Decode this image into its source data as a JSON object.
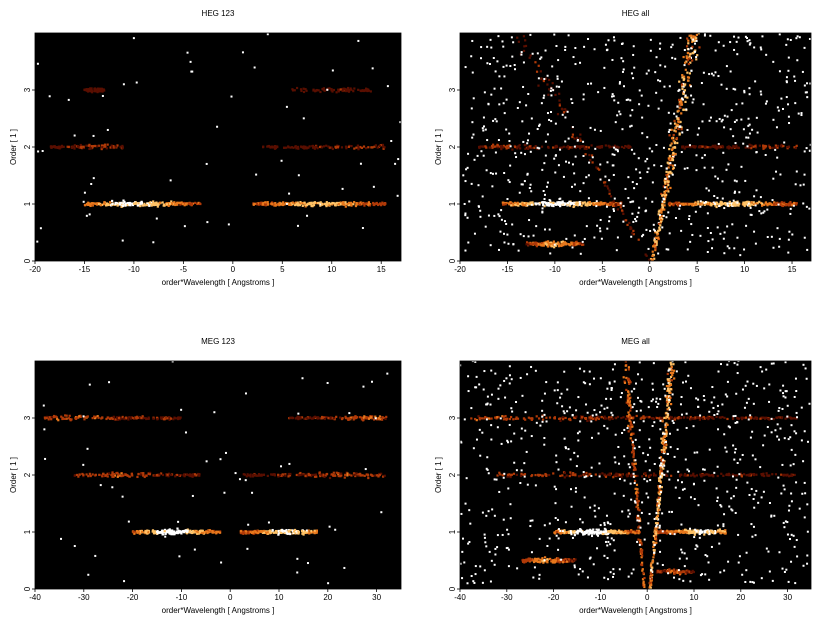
{
  "chart_data": [
    {
      "type": "heatmap",
      "title": "HEG 123",
      "xlabel": "order*Wavelength [ Angstroms ]",
      "ylabel": "Order [ 1 ]",
      "xlim": [
        -20,
        17
      ],
      "ylim": [
        0,
        4
      ],
      "xticks": [
        -20,
        -15,
        -10,
        -5,
        0,
        5,
        10,
        15
      ],
      "yticks": [
        0,
        1,
        2,
        3
      ],
      "background": "#000000",
      "colormap": [
        "#5a0f00",
        "#b03a08",
        "#e8781c",
        "#ffc266",
        "#ffffff"
      ],
      "bands": [
        {
          "order": 1,
          "x_min": -15,
          "x_max": -3.2,
          "peak_x": -10,
          "intensity": 0.85
        },
        {
          "order": 1,
          "x_min": 2,
          "x_max": 15.5,
          "peak_x": 8.5,
          "intensity": 0.7
        },
        {
          "order": 2,
          "x_min": -18.5,
          "x_max": -11,
          "peak_x": -14,
          "intensity": 0.25
        },
        {
          "order": 2,
          "x_min": 3,
          "x_max": 15.5,
          "peak_x": 13,
          "intensity": 0.2
        },
        {
          "order": 3,
          "x_min": -15,
          "x_max": -13,
          "peak_x": -14,
          "intensity": 0.1
        },
        {
          "order": 3,
          "x_min": 6,
          "x_max": 14,
          "peak_x": 10,
          "intensity": 0.1
        }
      ]
    },
    {
      "type": "heatmap",
      "title": "HEG all",
      "xlabel": "order*Wavelength [ Angstroms ]",
      "ylabel": "Order [ 1 ]",
      "xlim": [
        -20,
        17
      ],
      "ylim": [
        0,
        4
      ],
      "xticks": [
        -20,
        -15,
        -10,
        -5,
        0,
        5,
        10,
        15
      ],
      "yticks": [
        0,
        1,
        2,
        3
      ],
      "background": "#000000",
      "colormap": [
        "#5a0f00",
        "#b03a08",
        "#e8781c",
        "#ffc266",
        "#ffffff"
      ],
      "bands": [
        {
          "order": 1,
          "x_min": -15.5,
          "x_max": -3,
          "peak_x": -10,
          "intensity": 0.9
        },
        {
          "order": 1,
          "x_min": 2,
          "x_max": 15.5,
          "peak_x": 8.5,
          "intensity": 0.75
        },
        {
          "order": 0.3,
          "x_min": -13,
          "x_max": -7,
          "peak_x": -10,
          "intensity": 0.6
        },
        {
          "order": 2,
          "x_min": -18,
          "x_max": -2,
          "peak_x": -14,
          "intensity": 0.2
        },
        {
          "order": 2,
          "x_min": 3,
          "x_max": 15.5,
          "peak_x": 13,
          "intensity": 0.2
        }
      ],
      "streaks": [
        {
          "x_at_order0": 0.3,
          "slope_x_per_order": 1.1,
          "intensity": 0.85
        },
        {
          "x_at_order0": 0,
          "slope_x_per_order": -3.5,
          "intensity": 0.25
        }
      ]
    },
    {
      "type": "heatmap",
      "title": "MEG 123",
      "xlabel": "order*Wavelength [ Angstroms ]",
      "ylabel": "Order [ 1 ]",
      "xlim": [
        -40,
        35
      ],
      "ylim": [
        0,
        4
      ],
      "xticks": [
        -40,
        -30,
        -20,
        -10,
        0,
        10,
        20,
        30
      ],
      "yticks": [
        0,
        1,
        2,
        3
      ],
      "background": "#000000",
      "colormap": [
        "#5a0f00",
        "#b03a08",
        "#e8781c",
        "#ffc266",
        "#ffffff"
      ],
      "bands": [
        {
          "order": 1,
          "x_min": -20,
          "x_max": -2,
          "peak_x": -12,
          "intensity": 0.95
        },
        {
          "order": 1,
          "x_min": 2,
          "x_max": 18,
          "peak_x": 12,
          "intensity": 0.85
        },
        {
          "order": 2,
          "x_min": -32,
          "x_max": -6,
          "peak_x": -24,
          "intensity": 0.3
        },
        {
          "order": 2,
          "x_min": 2,
          "x_max": 32,
          "peak_x": 24,
          "intensity": 0.3
        },
        {
          "order": 3,
          "x_min": -38,
          "x_max": -10,
          "peak_x": -32,
          "intensity": 0.35
        },
        {
          "order": 3,
          "x_min": 12,
          "x_max": 32,
          "peak_x": 28,
          "intensity": 0.35
        }
      ]
    },
    {
      "type": "heatmap",
      "title": "MEG all",
      "xlabel": "order*Wavelength [ Angstroms ]",
      "ylabel": "Order [ 1 ]",
      "xlim": [
        -40,
        35
      ],
      "ylim": [
        0,
        4
      ],
      "xticks": [
        -40,
        -30,
        -20,
        -10,
        0,
        10,
        20,
        30
      ],
      "yticks": [
        0,
        1,
        2,
        3
      ],
      "background": "#000000",
      "colormap": [
        "#5a0f00",
        "#b03a08",
        "#e8781c",
        "#ffc266",
        "#ffffff"
      ],
      "bands": [
        {
          "order": 1,
          "x_min": -20,
          "x_max": -2,
          "peak_x": -12,
          "intensity": 0.95
        },
        {
          "order": 1,
          "x_min": 2,
          "x_max": 17,
          "peak_x": 12,
          "intensity": 0.85
        },
        {
          "order": 0.5,
          "x_min": -27,
          "x_max": -15,
          "peak_x": -22,
          "intensity": 0.55
        },
        {
          "order": 0.3,
          "x_min": 2,
          "x_max": 10,
          "peak_x": 6,
          "intensity": 0.35
        },
        {
          "order": 2,
          "x_min": -32,
          "x_max": 32,
          "peak_x": -24,
          "intensity": 0.25
        },
        {
          "order": 3,
          "x_min": -38,
          "x_max": 32,
          "peak_x": -30,
          "intensity": 0.3
        }
      ],
      "streaks": [
        {
          "x_at_order0": 0.6,
          "slope_x_per_order": 1.2,
          "intensity": 0.85
        },
        {
          "x_at_order0": -0.6,
          "slope_x_per_order": -1.0,
          "intensity": 0.5
        }
      ]
    }
  ]
}
